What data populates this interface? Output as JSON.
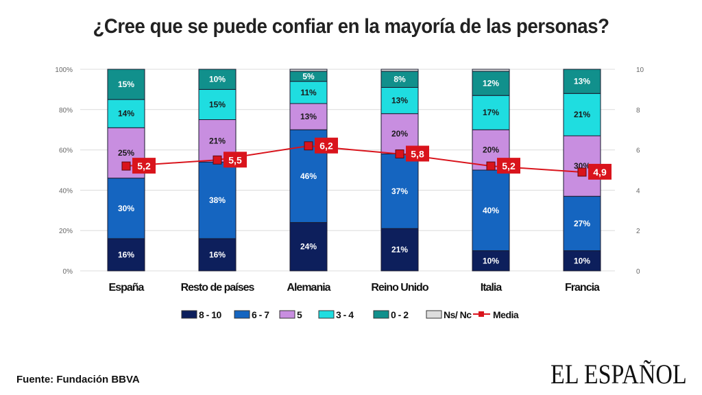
{
  "title": "¿Cree que se puede confiar en la mayoría de las personas?",
  "source": "Fuente: Fundación BBVA",
  "brand": "EL ESPAÑOL",
  "chart_data": {
    "type": "bar",
    "stacked": true,
    "title": "¿Cree que se puede confiar en la mayoría de las personas?",
    "xlabel": "",
    "ylabel": "",
    "categories": [
      "España",
      "Resto de países",
      "Alemania",
      "Reino Unido",
      "Italia",
      "Francia"
    ],
    "ylim": [
      0,
      100
    ],
    "y_ticks": [
      "0%",
      "20%",
      "40%",
      "60%",
      "80%",
      "100%"
    ],
    "y2lim": [
      0,
      10
    ],
    "y2_ticks": [
      "0",
      "2",
      "4",
      "6",
      "8",
      "10"
    ],
    "grid": true,
    "legend_position": "bottom",
    "series": [
      {
        "name": "8 - 10",
        "color": "#0d1f5c",
        "label_color": "#ffffff",
        "values": [
          16,
          16,
          24,
          21,
          10,
          10
        ]
      },
      {
        "name": "6 - 7",
        "color": "#1565c0",
        "label_color": "#ffffff",
        "values": [
          30,
          38,
          46,
          37,
          40,
          27
        ]
      },
      {
        "name": "5",
        "color": "#c88ee0",
        "label_color": "#1a1a1a",
        "values": [
          25,
          21,
          13,
          20,
          20,
          30
        ]
      },
      {
        "name": "3 - 4",
        "color": "#1fdde0",
        "label_color": "#1a1a1a",
        "values": [
          14,
          15,
          11,
          13,
          17,
          21
        ]
      },
      {
        "name": "0 - 2",
        "color": "#11908c",
        "label_color": "#ffffff",
        "values": [
          15,
          10,
          5,
          8,
          12,
          13
        ]
      },
      {
        "name": "Ns/ Nc",
        "color": "#dddddd",
        "label_color": "#1a1a1a",
        "values": [
          0,
          0,
          1,
          1,
          1,
          0
        ]
      }
    ],
    "line_series": {
      "name": "Media",
      "color": "#d9141c",
      "axis": "right",
      "values": [
        5.2,
        5.5,
        6.2,
        5.8,
        5.2,
        4.9
      ],
      "labels": [
        "5,2",
        "5,5",
        "6,2",
        "5,8",
        "5,2",
        "4,9"
      ]
    }
  }
}
